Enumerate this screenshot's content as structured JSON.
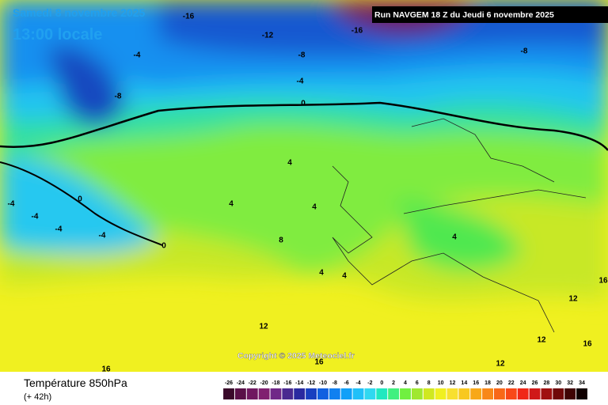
{
  "header": {
    "date": "Samedi 8 novembre 2025",
    "time": "13:00 locale",
    "run": "Run NAVGEM 18 Z du Jeudi 6 novembre 2025"
  },
  "copyright": "Copyright © 2025 Meteociel.fr",
  "footer": {
    "title": "Température 850hPa",
    "lead": "(+ 42h)"
  },
  "map_labels": [
    -16,
    -12,
    -16,
    -8,
    -4,
    -8,
    -4,
    -8,
    0,
    4,
    0,
    -4,
    -4,
    4,
    4,
    -4,
    -4,
    0,
    8,
    4,
    4,
    4,
    12,
    12,
    16,
    12,
    16,
    16,
    12,
    16
  ],
  "scale": {
    "values": [
      -26,
      -24,
      -22,
      -20,
      -18,
      -16,
      -14,
      -12,
      -10,
      -8,
      -6,
      -4,
      -2,
      0,
      2,
      4,
      6,
      8,
      10,
      12,
      14,
      16,
      18,
      20,
      22,
      24,
      26,
      28,
      30,
      32,
      34
    ],
    "colors": [
      "#3a0a2a",
      "#5a1048",
      "#701860",
      "#802070",
      "#702888",
      "#4a2a90",
      "#2a2aa0",
      "#1840c0",
      "#1060e0",
      "#1080f0",
      "#10a0f8",
      "#20c0f8",
      "#30d8f0",
      "#20e8c0",
      "#40f080",
      "#70f040",
      "#a0e830",
      "#d0e820",
      "#f0f020",
      "#f8e030",
      "#f8c820",
      "#f8a818",
      "#f88818",
      "#f86818",
      "#f84818",
      "#f02818",
      "#d01818",
      "#a01010",
      "#700808",
      "#400404",
      "#100000"
    ]
  }
}
